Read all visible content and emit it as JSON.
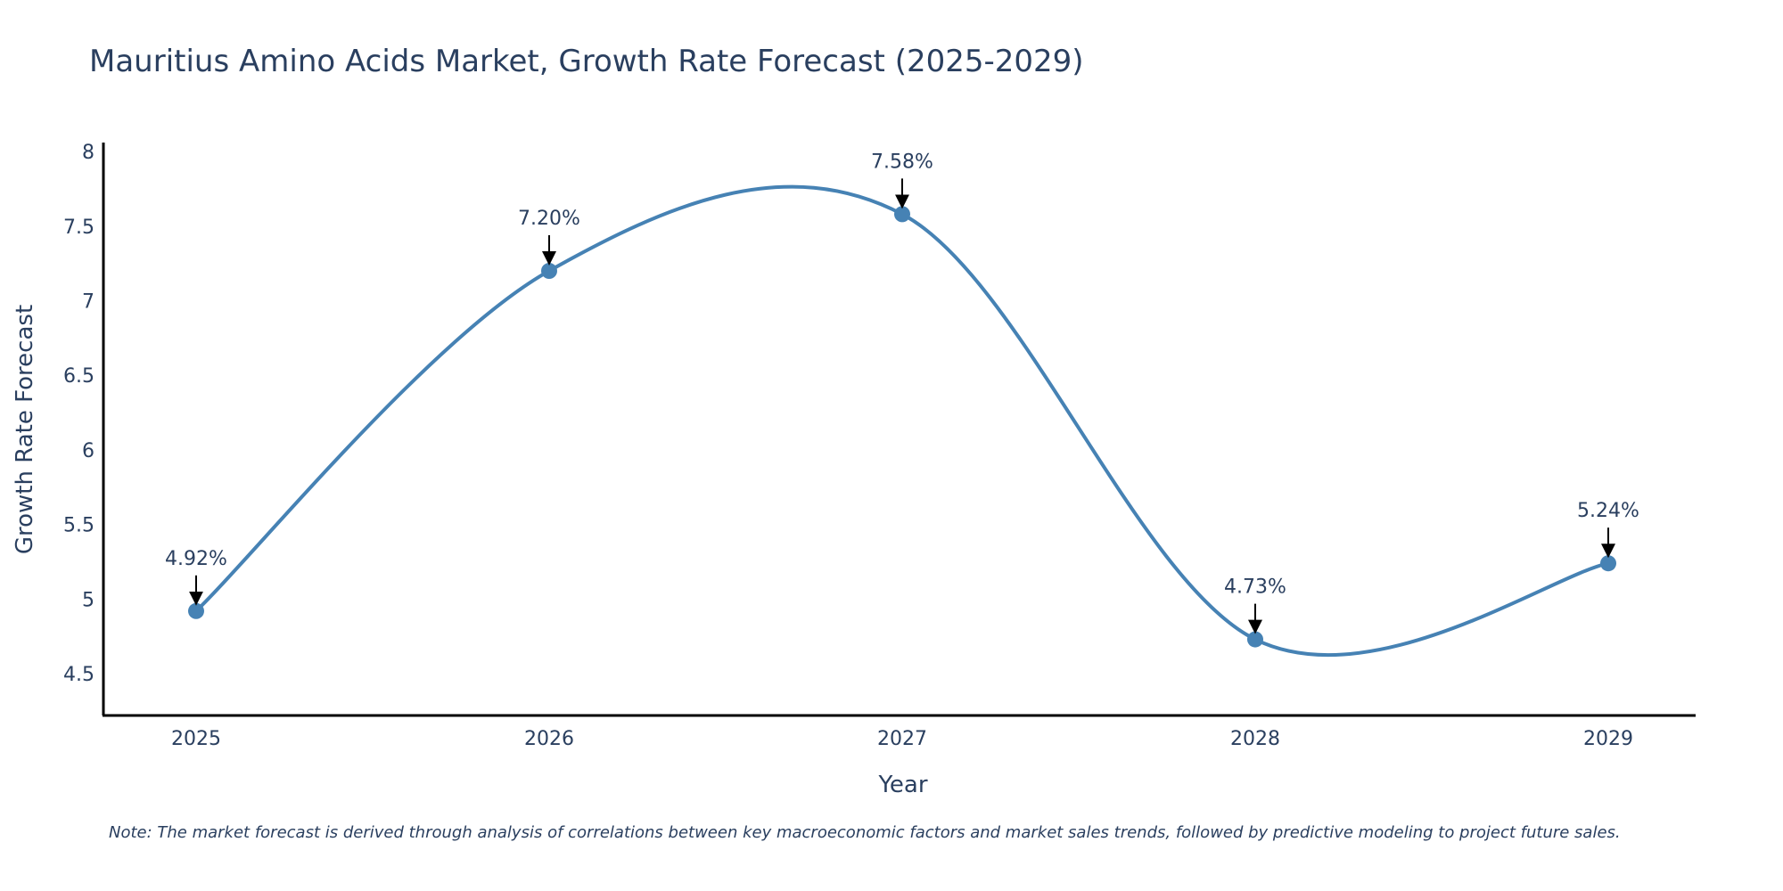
{
  "chart_data": {
    "type": "line",
    "title": "Mauritius Amino Acids Market, Growth Rate Forecast (2025-2029)",
    "xlabel": "Year",
    "ylabel": "Growth Rate Forecast",
    "categories": [
      "2025",
      "2026",
      "2027",
      "2028",
      "2029"
    ],
    "values": [
      4.92,
      7.2,
      7.58,
      4.73,
      5.24
    ],
    "data_labels": [
      "4.92%",
      "7.20%",
      "7.58%",
      "4.73%",
      "5.24%"
    ],
    "yticks": [
      4.5,
      5,
      5.5,
      6,
      6.5,
      7,
      7.5,
      8
    ],
    "ytick_labels": [
      "4.5",
      "5",
      "5.5",
      "6",
      "6.5",
      "7",
      "7.5",
      "8"
    ],
    "ylim": [
      4.22,
      8.06
    ],
    "grid": false,
    "line_color": "#4682b4",
    "marker_color": "#4682b4",
    "note": "Note: The market forecast is derived through analysis of correlations between key macroeconomic factors and market sales trends, followed by predictive modeling to project future sales."
  }
}
